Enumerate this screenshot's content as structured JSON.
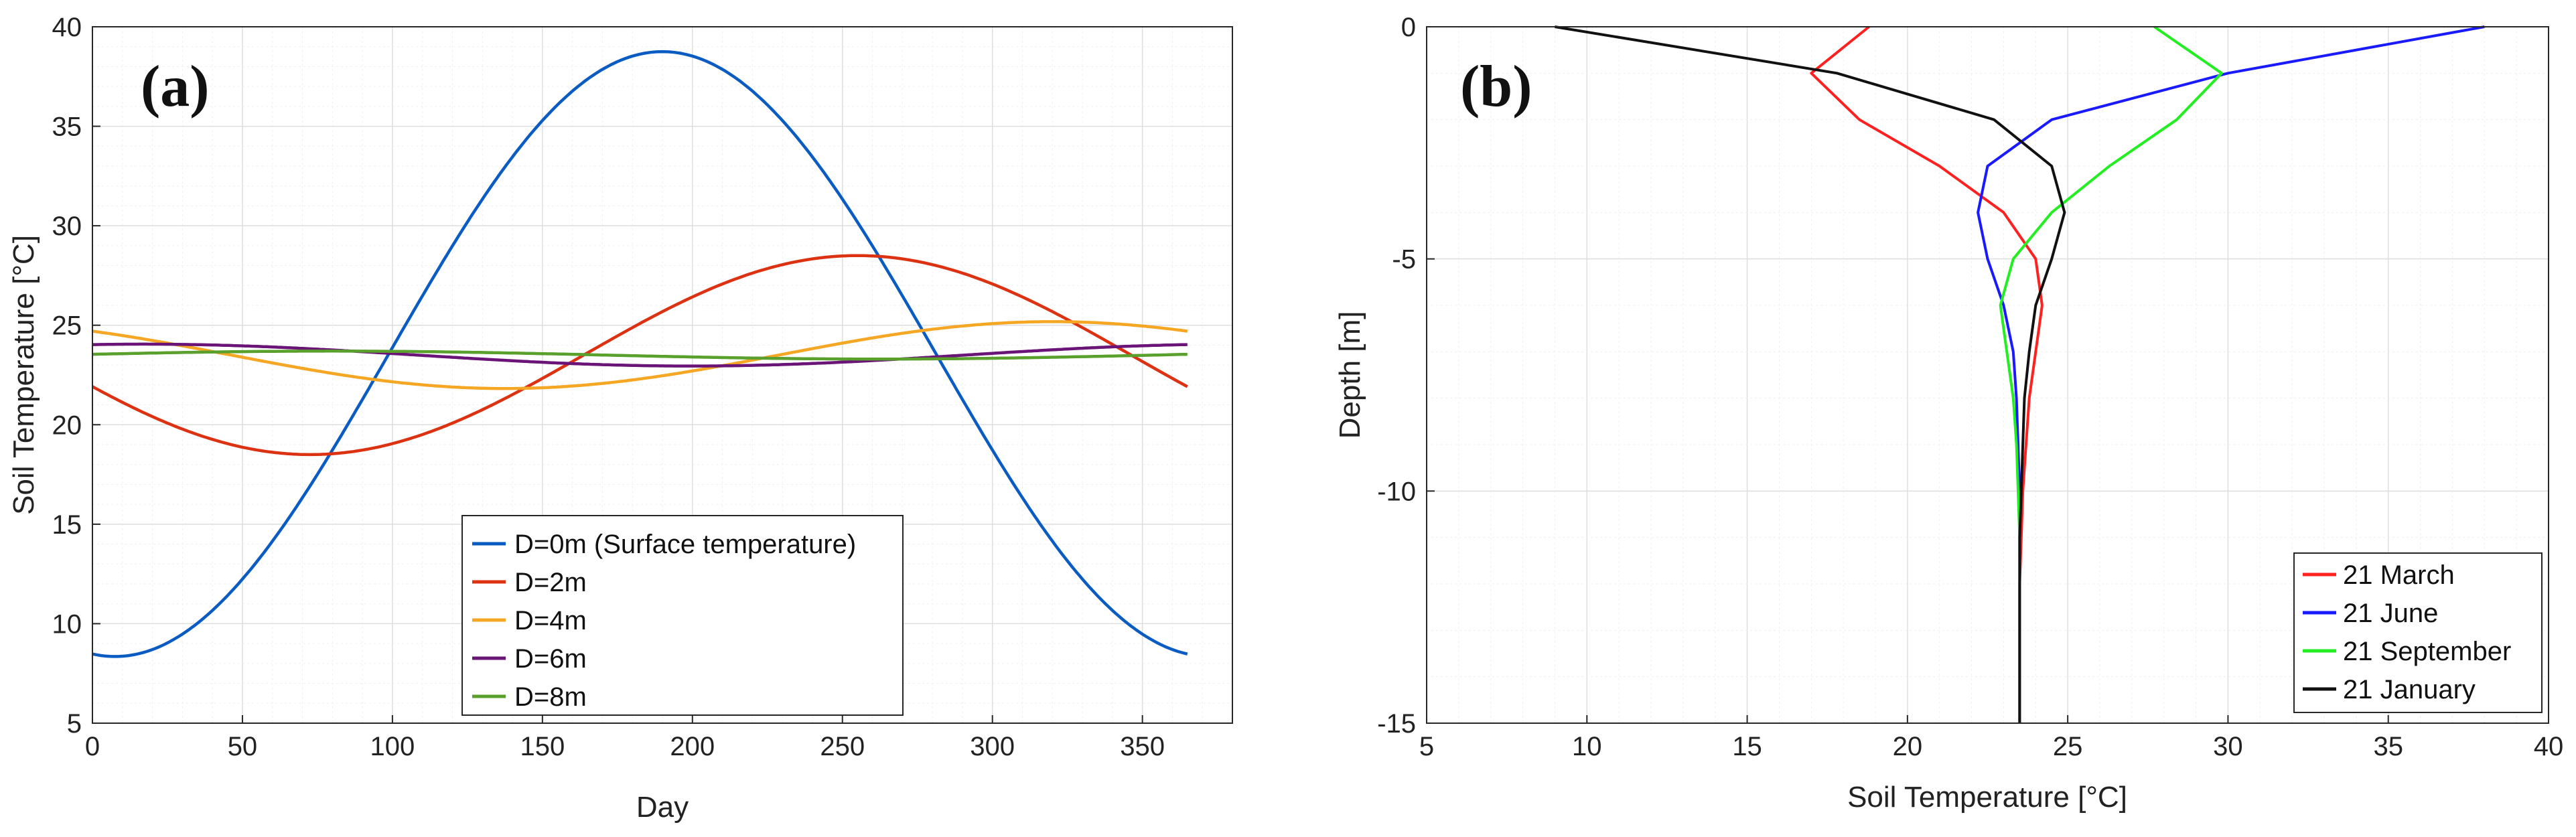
{
  "chart_data": [
    {
      "type": "line",
      "panel_label": "(a)",
      "xlabel": "Day",
      "ylabel": "Soil Temperature [°C]",
      "xlim": [
        0,
        380
      ],
      "ylim": [
        5,
        40
      ],
      "xticks": [
        0,
        50,
        100,
        150,
        200,
        250,
        300,
        350
      ],
      "yticks": [
        5,
        10,
        15,
        20,
        25,
        30,
        35,
        40
      ],
      "grid": true,
      "legend_position": "bottom-center",
      "series": [
        {
          "name": "D=0m (Surface temperature)",
          "color": "#0a5cc2",
          "mean": 23.55,
          "amplitude": 15.2,
          "peak_day": 190
        },
        {
          "name": "D=2m",
          "color": "#dc3212",
          "mean": 23.5,
          "amplitude": 5.0,
          "peak_day": 255
        },
        {
          "name": "D=4m",
          "color": "#f5a623",
          "mean": 23.5,
          "amplitude": 1.68,
          "peak_day": 320
        },
        {
          "name": "D=6m",
          "color": "#6a1478",
          "mean": 23.5,
          "amplitude": 0.55,
          "peak_day": 17
        },
        {
          "name": "D=8m",
          "color": "#5aa02c",
          "mean": 23.5,
          "amplitude": 0.2,
          "peak_day": 80
        }
      ],
      "day_range": [
        0,
        365
      ]
    },
    {
      "type": "line",
      "panel_label": "(b)",
      "xlabel": "Soil Temperature [°C]",
      "ylabel": "Depth [m]",
      "xlim": [
        5,
        40
      ],
      "ylim": [
        -15,
        0
      ],
      "xticks": [
        5,
        10,
        15,
        20,
        25,
        30,
        35,
        40
      ],
      "yticks": [
        0,
        -5,
        -10,
        -15
      ],
      "grid": true,
      "legend_position": "bottom-right",
      "series": [
        {
          "name": "21 March",
          "color": "#ff2020",
          "temperature": [
            18.8,
            17.0,
            18.5,
            21.0,
            23.0,
            24.0,
            24.2,
            24.0,
            23.8,
            23.7,
            23.6,
            23.55,
            23.5,
            23.5,
            23.5,
            23.5
          ],
          "depth": [
            0,
            -1,
            -2,
            -3,
            -4,
            -5,
            -6,
            -7,
            -8,
            -9,
            -10,
            -11,
            -12,
            -13,
            -14,
            -15
          ]
        },
        {
          "name": "21 June",
          "color": "#1a1aff",
          "temperature": [
            38.0,
            30.0,
            24.5,
            22.5,
            22.2,
            22.5,
            23.0,
            23.3,
            23.4,
            23.45,
            23.5,
            23.5,
            23.5,
            23.5,
            23.5,
            23.5
          ],
          "depth": [
            0,
            -1,
            -2,
            -3,
            -4,
            -5,
            -6,
            -7,
            -8,
            -9,
            -10,
            -11,
            -12,
            -13,
            -14,
            -15
          ]
        },
        {
          "name": "21 September",
          "color": "#22ee22",
          "temperature": [
            27.7,
            29.8,
            28.4,
            26.3,
            24.5,
            23.3,
            22.9,
            23.1,
            23.3,
            23.4,
            23.45,
            23.5,
            23.5,
            23.5,
            23.5,
            23.5
          ],
          "depth": [
            0,
            -1,
            -2,
            -3,
            -4,
            -5,
            -6,
            -7,
            -8,
            -9,
            -10,
            -11,
            -12,
            -13,
            -14,
            -15
          ]
        },
        {
          "name": "21 January",
          "color": "#111111",
          "temperature": [
            9.0,
            17.8,
            22.7,
            24.5,
            24.9,
            24.5,
            24.0,
            23.8,
            23.65,
            23.6,
            23.55,
            23.5,
            23.5,
            23.5,
            23.5,
            23.5
          ],
          "depth": [
            0,
            -1,
            -2,
            -3,
            -4,
            -5,
            -6,
            -7,
            -8,
            -9,
            -10,
            -11,
            -12,
            -13,
            -14,
            -15
          ]
        }
      ]
    }
  ]
}
